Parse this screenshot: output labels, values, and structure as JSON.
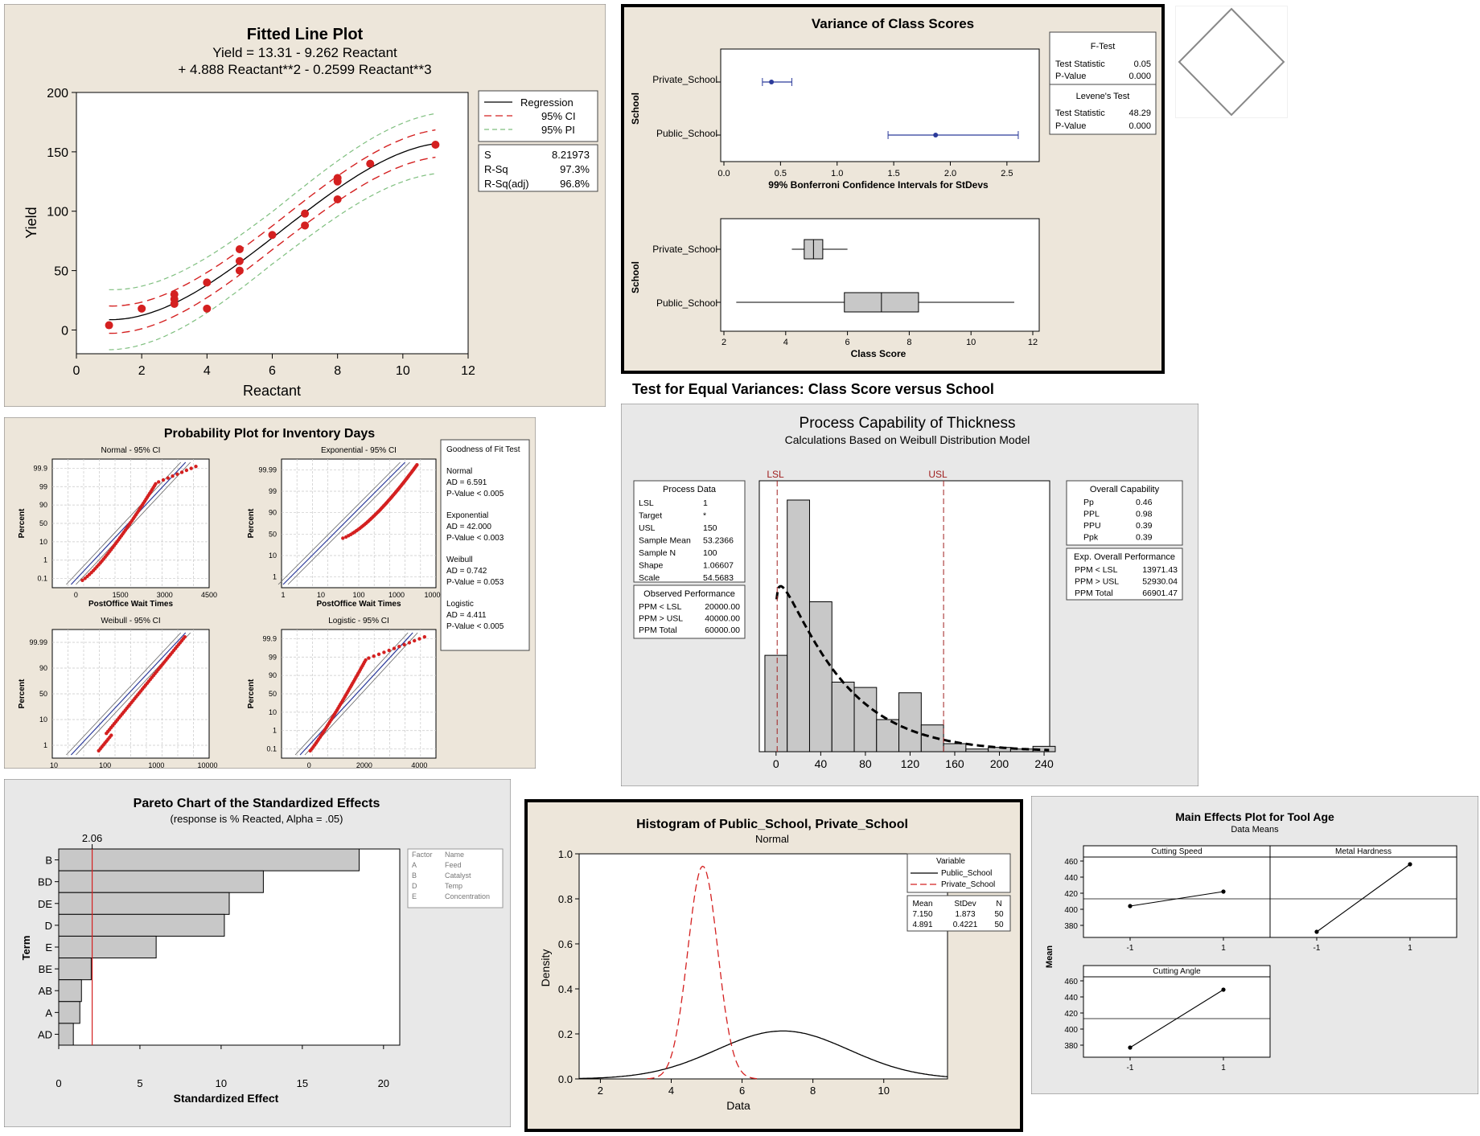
{
  "colors": {
    "panel_bg": "#ede6da",
    "panel_bg_grey": "#e8e8e8",
    "red": "#d42020",
    "grid": "#c8c8c8",
    "bar_fill": "#c8c8c8",
    "ci_dash": "#d42020",
    "pi_dash": "#7fbf7f",
    "blue": "#2b3a9a"
  },
  "fitted": {
    "title": "Fitted Line Plot",
    "eq1": "Yield  =  13.31 - 9.262 Reactant",
    "eq2": "+ 4.888 Reactant**2 - 0.2599 Reactant**3",
    "legend": [
      "Regression",
      "95% CI",
      "95% PI"
    ],
    "stats": [
      {
        "k": "S",
        "v": "8.21973"
      },
      {
        "k": "R-Sq",
        "v": "97.3%"
      },
      {
        "k": "R-Sq(adj)",
        "v": "96.8%"
      }
    ]
  },
  "variance": {
    "title": "Variance of Class Scores",
    "caption": "Test for Equal Variances: Class Score versus School",
    "ylabel": "School",
    "xlabel1": "99% Bonferroni Confidence Intervals for StDevs",
    "xlabel2": "Class Score",
    "groups": [
      "Private_School",
      "Public_School"
    ],
    "ftest_title": "F-Test",
    "ftest": [
      {
        "k": "Test Statistic",
        "v": "0.05"
      },
      {
        "k": "P-Value",
        "v": "0.000"
      }
    ],
    "levene_title": "Levene's Test",
    "levene": [
      {
        "k": "Test Statistic",
        "v": "48.29"
      },
      {
        "k": "P-Value",
        "v": "0.000"
      }
    ]
  },
  "probability": {
    "title": "Probability Plot for Inventory Days",
    "xlabel": "PostOffice Wait Times",
    "ylabel": "Percent",
    "subtitles": [
      "Normal - 95% CI",
      "Exponential - 95% CI",
      "Weibull - 95% CI",
      "Logistic - 95% CI"
    ],
    "gof_title": "Goodness of Fit Test",
    "gof": [
      {
        "name": "Normal",
        "ad": "AD = 6.591",
        "p": "P-Value < 0.005"
      },
      {
        "name": "Exponential",
        "ad": "AD = 42.000",
        "p": "P-Value < 0.003"
      },
      {
        "name": "Weibull",
        "ad": "AD = 0.742",
        "p": "P-Value = 0.053"
      },
      {
        "name": "Logistic",
        "ad": "AD = 4.411",
        "p": "P-Value < 0.005"
      }
    ]
  },
  "capability": {
    "title": "Process Capability of Thickness",
    "subtitle": "Calculations Based on Weibull Distribution Model",
    "lsl_label": "LSL",
    "usl_label": "USL",
    "process_title": "Process Data",
    "process": [
      {
        "k": "LSL",
        "v": "1"
      },
      {
        "k": "Target",
        "v": "*"
      },
      {
        "k": "USL",
        "v": "150"
      },
      {
        "k": "Sample Mean",
        "v": "53.2366"
      },
      {
        "k": "Sample N",
        "v": "100"
      },
      {
        "k": "Shape",
        "v": "1.06607"
      },
      {
        "k": "Scale",
        "v": "54.5683"
      }
    ],
    "observed_title": "Observed Performance",
    "observed": [
      {
        "k": "PPM < LSL",
        "v": "20000.00"
      },
      {
        "k": "PPM > USL",
        "v": "40000.00"
      },
      {
        "k": "PPM Total",
        "v": "60000.00"
      }
    ],
    "overall_title": "Overall Capability",
    "overall": [
      {
        "k": "Pp",
        "v": "0.46"
      },
      {
        "k": "PPL",
        "v": "0.98"
      },
      {
        "k": "PPU",
        "v": "0.39"
      },
      {
        "k": "Ppk",
        "v": "0.39"
      }
    ],
    "expected_title": "Exp. Overall Performance",
    "expected": [
      {
        "k": "PPM < LSL",
        "v": "13971.43"
      },
      {
        "k": "PPM > USL",
        "v": "52930.04"
      },
      {
        "k": "PPM Total",
        "v": "66901.47"
      }
    ]
  },
  "pareto": {
    "title": "Pareto Chart of the Standardized Effects",
    "subtitle": "(response is % Reacted, Alpha = .05)",
    "ref_label": "2.06",
    "ylabel": "Term",
    "xlabel": "Standardized Effect",
    "legend_head": [
      "Factor",
      "Name"
    ],
    "legend": [
      {
        "f": "A",
        "n": "Feed"
      },
      {
        "f": "B",
        "n": "Catalyst"
      },
      {
        "f": "D",
        "n": "Temp"
      },
      {
        "f": "E",
        "n": "Concentration"
      }
    ]
  },
  "histogram": {
    "title": "Histogram of Public_School, Private_School",
    "subtitle": "Normal",
    "xlabel": "Data",
    "ylabel": "Density",
    "legend_title": "Variable",
    "legend": [
      "Public_School",
      "Private_School"
    ],
    "stats_head": [
      "Mean",
      "StDev",
      "N"
    ],
    "stats": [
      [
        "7.150",
        "1.873",
        "50"
      ],
      [
        "4.891",
        "0.4221",
        "50"
      ]
    ]
  },
  "main_effects": {
    "title": "Main Effects Plot for Tool Age",
    "subtitle": "Data Means",
    "ylabel": "Mean",
    "panels": [
      "Cutting Speed",
      "Metal Hardness",
      "Cutting Angle"
    ]
  },
  "chart_data": [
    {
      "type": "scatter",
      "title": "Fitted Line Plot",
      "xlabel": "Reactant",
      "ylabel": "Yield",
      "xlim": [
        0,
        12
      ],
      "ylim": [
        -20,
        200
      ],
      "xticks": [
        0,
        2,
        4,
        6,
        8,
        10,
        12
      ],
      "yticks": [
        0,
        50,
        100,
        150,
        200
      ],
      "x": [
        1,
        2,
        3,
        3,
        3,
        4,
        4,
        5,
        5,
        5,
        6,
        7,
        7,
        8,
        8,
        8,
        9,
        11
      ],
      "y": [
        4,
        18,
        22,
        26,
        30,
        40,
        18,
        50,
        58,
        68,
        80,
        98,
        88,
        125,
        128,
        110,
        140,
        156
      ],
      "fit": {
        "intercept": 13.31,
        "b1": -9.262,
        "b2": 4.888,
        "b3": -0.2599,
        "ci_halfwidth": 10,
        "pi_halfwidth": 22
      }
    },
    {
      "type": "scatter",
      "title": "Variance of Class Scores - StDev intervals",
      "xlim": [
        0,
        2.7
      ],
      "xticks": [
        0.0,
        0.5,
        1.0,
        1.5,
        2.0,
        2.5
      ],
      "categories": [
        "Private_School",
        "Public_School"
      ],
      "estimate": [
        0.42,
        1.87
      ],
      "lower": [
        0.34,
        1.45
      ],
      "upper": [
        0.6,
        2.6
      ]
    },
    {
      "type": "box",
      "title": "Variance of Class Scores - Boxplot",
      "xlim": [
        2,
        12
      ],
      "xticks": [
        2,
        4,
        6,
        8,
        10,
        12
      ],
      "categories": [
        "Private_School",
        "Public_School"
      ],
      "min": [
        4.2,
        2.4
      ],
      "q1": [
        4.6,
        5.9
      ],
      "median": [
        4.9,
        7.1
      ],
      "q3": [
        5.2,
        8.3
      ],
      "max": [
        6.0,
        11.4
      ]
    },
    {
      "type": "scatter",
      "title": "Probability Plot for Inventory Days",
      "panels": [
        {
          "name": "Normal - 95% CI",
          "xlim": [
            -800,
            4500
          ],
          "xticks": [
            0,
            1500,
            3000,
            4500
          ],
          "yticks": [
            "0.1",
            "1",
            "10",
            "50",
            "90",
            "99",
            "99.9"
          ]
        },
        {
          "name": "Exponential - 95% CI",
          "xscale": "log",
          "xlim": [
            1,
            10000
          ],
          "xticks": [
            1,
            10,
            100,
            1000,
            10000
          ],
          "yticks": [
            "1",
            "10",
            "50",
            "90",
            "99",
            "99.99"
          ]
        },
        {
          "name": "Weibull - 95% CI",
          "xscale": "log",
          "xlim": [
            10,
            10000
          ],
          "xticks": [
            10,
            100,
            1000,
            10000
          ],
          "yticks": [
            "1",
            "10",
            "50",
            "90",
            "99.99"
          ]
        },
        {
          "name": "Logistic - 95% CI",
          "xlim": [
            -1000,
            4600
          ],
          "xticks": [
            0,
            2000,
            4000
          ],
          "yticks": [
            "0.1",
            "1",
            "10",
            "50",
            "90",
            "99",
            "99.9"
          ]
        }
      ]
    },
    {
      "type": "bar",
      "title": "Process Capability of Thickness",
      "bins_left": [
        -10,
        10,
        30,
        50,
        70,
        90,
        110,
        130,
        150,
        170,
        190,
        210,
        230
      ],
      "bin_width": 20,
      "counts": [
        18,
        47,
        28,
        13,
        12,
        6,
        11,
        5,
        1.5,
        0.5,
        0.8,
        0.5,
        1
      ],
      "xlim": [
        -15,
        245
      ],
      "ylim": [
        0,
        50
      ],
      "xticks": [
        0,
        40,
        80,
        120,
        160,
        200,
        240
      ],
      "lsl": 1,
      "usl": 150,
      "weibull": {
        "shape": 1.06607,
        "scale": 54.5683
      }
    },
    {
      "type": "bar",
      "title": "Pareto Chart of the Standardized Effects",
      "categories": [
        "B",
        "BD",
        "DE",
        "D",
        "E",
        "BE",
        "AB",
        "A",
        "AD"
      ],
      "values": [
        18.5,
        12.6,
        10.5,
        10.2,
        6.0,
        2.0,
        1.4,
        1.3,
        0.9
      ],
      "xlim": [
        0,
        21
      ],
      "xticks": [
        0,
        5,
        10,
        15,
        20
      ],
      "reference": 2.06
    },
    {
      "type": "line",
      "title": "Histogram of Public_School, Private_School",
      "xlim": [
        1.4,
        11.8
      ],
      "ylim": [
        0,
        1.0
      ],
      "xticks": [
        2,
        4,
        6,
        8,
        10
      ],
      "yticks": [
        0.0,
        0.2,
        0.4,
        0.6,
        0.8,
        1.0
      ],
      "series": [
        {
          "name": "Public_School",
          "mean": 7.15,
          "sd": 1.873
        },
        {
          "name": "Private_School",
          "mean": 4.891,
          "sd": 0.4221
        }
      ]
    },
    {
      "type": "line",
      "title": "Main Effects Plot for Tool Age",
      "ylim": [
        365,
        465
      ],
      "yticks": [
        380,
        400,
        420,
        440,
        460
      ],
      "overall_mean": 413,
      "categories": [
        "-1",
        "1"
      ],
      "series": [
        {
          "name": "Cutting Speed",
          "values": [
            404,
            422
          ]
        },
        {
          "name": "Metal Hardness",
          "values": [
            372,
            456
          ]
        },
        {
          "name": "Cutting Angle",
          "values": [
            377,
            449
          ]
        }
      ]
    }
  ]
}
